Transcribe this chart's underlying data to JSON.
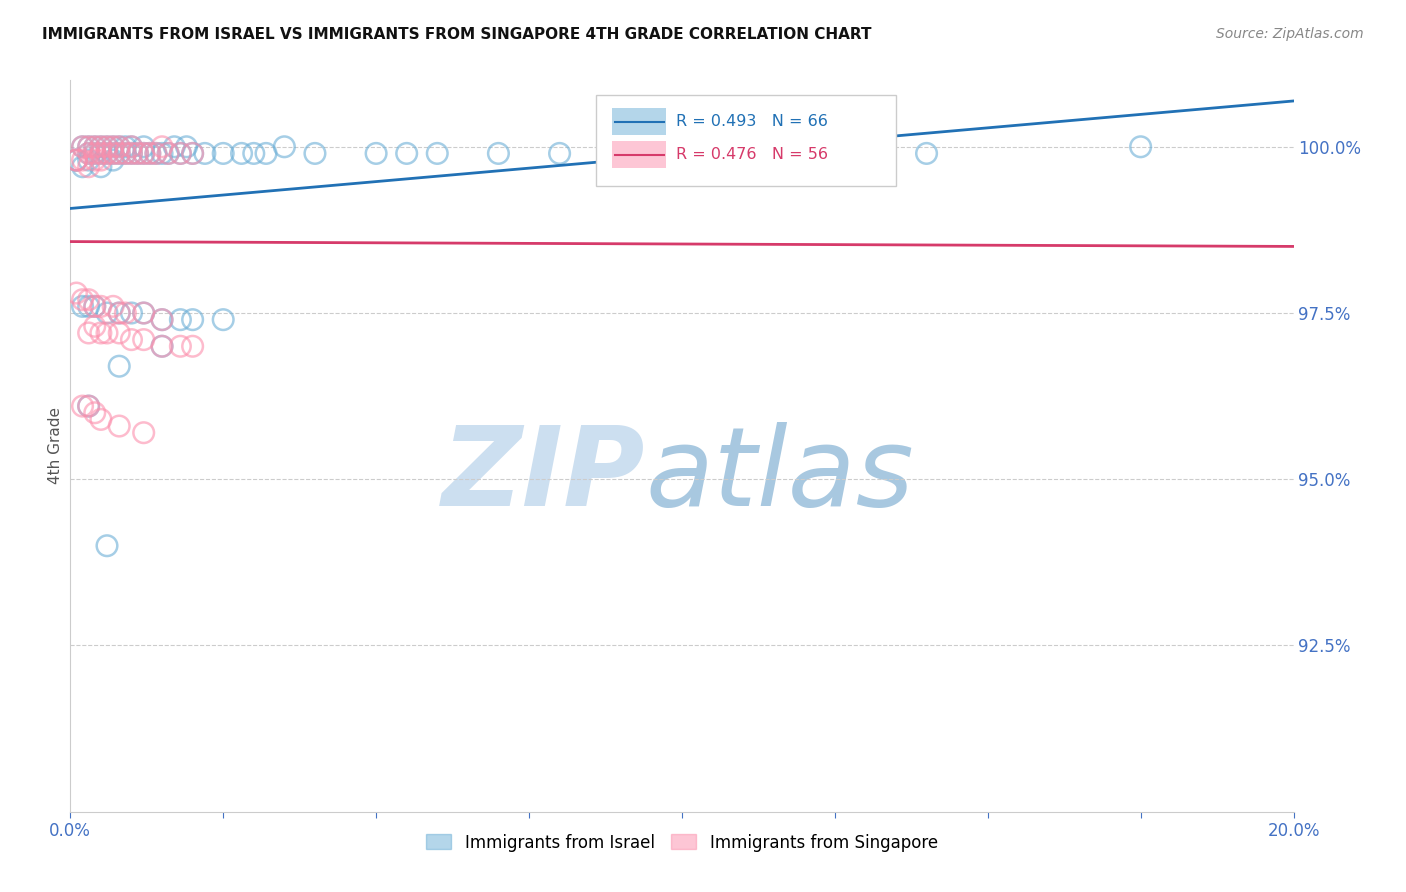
{
  "title": "IMMIGRANTS FROM ISRAEL VS IMMIGRANTS FROM SINGAPORE 4TH GRADE CORRELATION CHART",
  "source": "Source: ZipAtlas.com",
  "ylabel": "4th Grade",
  "xlim": [
    0.0,
    0.2
  ],
  "ylim": [
    0.9,
    1.01
  ],
  "yticks": [
    0.925,
    0.95,
    0.975,
    1.0
  ],
  "ytick_labels": [
    "92.5%",
    "95.0%",
    "97.5%",
    "100.0%"
  ],
  "israel_color": "#6baed6",
  "singapore_color": "#fc8fac",
  "israel_line_color": "#2171b5",
  "singapore_line_color": "#d63a6a",
  "israel_R": 0.493,
  "israel_N": 66,
  "singapore_R": 0.476,
  "singapore_N": 56,
  "legend_label_israel": "Immigrants from Israel",
  "legend_label_singapore": "Immigrants from Singapore",
  "tick_color": "#4472c4",
  "grid_color": "#cccccc",
  "israel_x": [
    0.002,
    0.003,
    0.003,
    0.004,
    0.004,
    0.005,
    0.005,
    0.006,
    0.006,
    0.007,
    0.007,
    0.008,
    0.008,
    0.009,
    0.009,
    0.01,
    0.01,
    0.011,
    0.012,
    0.012,
    0.013,
    0.014,
    0.015,
    0.016,
    0.017,
    0.018,
    0.019,
    0.02,
    0.022,
    0.025,
    0.028,
    0.03,
    0.032,
    0.035,
    0.04,
    0.05,
    0.055,
    0.06,
    0.07,
    0.08,
    0.09,
    0.1,
    0.12,
    0.14,
    0.001,
    0.001,
    0.002,
    0.003,
    0.005,
    0.007,
    0.002,
    0.003,
    0.004,
    0.006,
    0.008,
    0.01,
    0.012,
    0.015,
    0.018,
    0.02,
    0.025,
    0.015,
    0.008,
    0.003,
    0.006,
    0.175
  ],
  "israel_y": [
    1.0,
    0.999,
    1.0,
    0.999,
    1.0,
    0.999,
    1.0,
    0.999,
    1.0,
    0.999,
    1.0,
    0.999,
    1.0,
    0.999,
    1.0,
    0.999,
    1.0,
    0.999,
    0.999,
    1.0,
    0.999,
    0.999,
    0.999,
    0.999,
    1.0,
    0.999,
    1.0,
    0.999,
    0.999,
    0.999,
    0.999,
    0.999,
    0.999,
    1.0,
    0.999,
    0.999,
    0.999,
    0.999,
    0.999,
    0.999,
    0.999,
    0.999,
    0.999,
    0.999,
    0.998,
    0.998,
    0.997,
    0.998,
    0.997,
    0.998,
    0.976,
    0.976,
    0.976,
    0.975,
    0.975,
    0.975,
    0.975,
    0.974,
    0.974,
    0.974,
    0.974,
    0.97,
    0.967,
    0.961,
    0.94,
    1.0
  ],
  "singapore_x": [
    0.002,
    0.003,
    0.003,
    0.004,
    0.004,
    0.005,
    0.005,
    0.006,
    0.006,
    0.007,
    0.007,
    0.008,
    0.008,
    0.009,
    0.01,
    0.01,
    0.011,
    0.012,
    0.013,
    0.014,
    0.015,
    0.016,
    0.018,
    0.02,
    0.001,
    0.001,
    0.002,
    0.003,
    0.004,
    0.005,
    0.001,
    0.002,
    0.003,
    0.004,
    0.005,
    0.007,
    0.008,
    0.009,
    0.012,
    0.015,
    0.003,
    0.004,
    0.005,
    0.006,
    0.008,
    0.01,
    0.012,
    0.015,
    0.018,
    0.02,
    0.002,
    0.003,
    0.004,
    0.005,
    0.008,
    0.012
  ],
  "singapore_y": [
    1.0,
    0.999,
    1.0,
    0.999,
    1.0,
    0.999,
    1.0,
    0.999,
    1.0,
    0.999,
    1.0,
    0.999,
    1.0,
    0.999,
    1.0,
    0.999,
    0.999,
    0.999,
    0.999,
    0.999,
    1.0,
    0.999,
    0.999,
    0.999,
    0.998,
    0.998,
    0.998,
    0.997,
    0.998,
    0.998,
    0.978,
    0.977,
    0.977,
    0.976,
    0.976,
    0.976,
    0.975,
    0.975,
    0.975,
    0.974,
    0.972,
    0.973,
    0.972,
    0.972,
    0.972,
    0.971,
    0.971,
    0.97,
    0.97,
    0.97,
    0.961,
    0.961,
    0.96,
    0.959,
    0.958,
    0.957
  ]
}
